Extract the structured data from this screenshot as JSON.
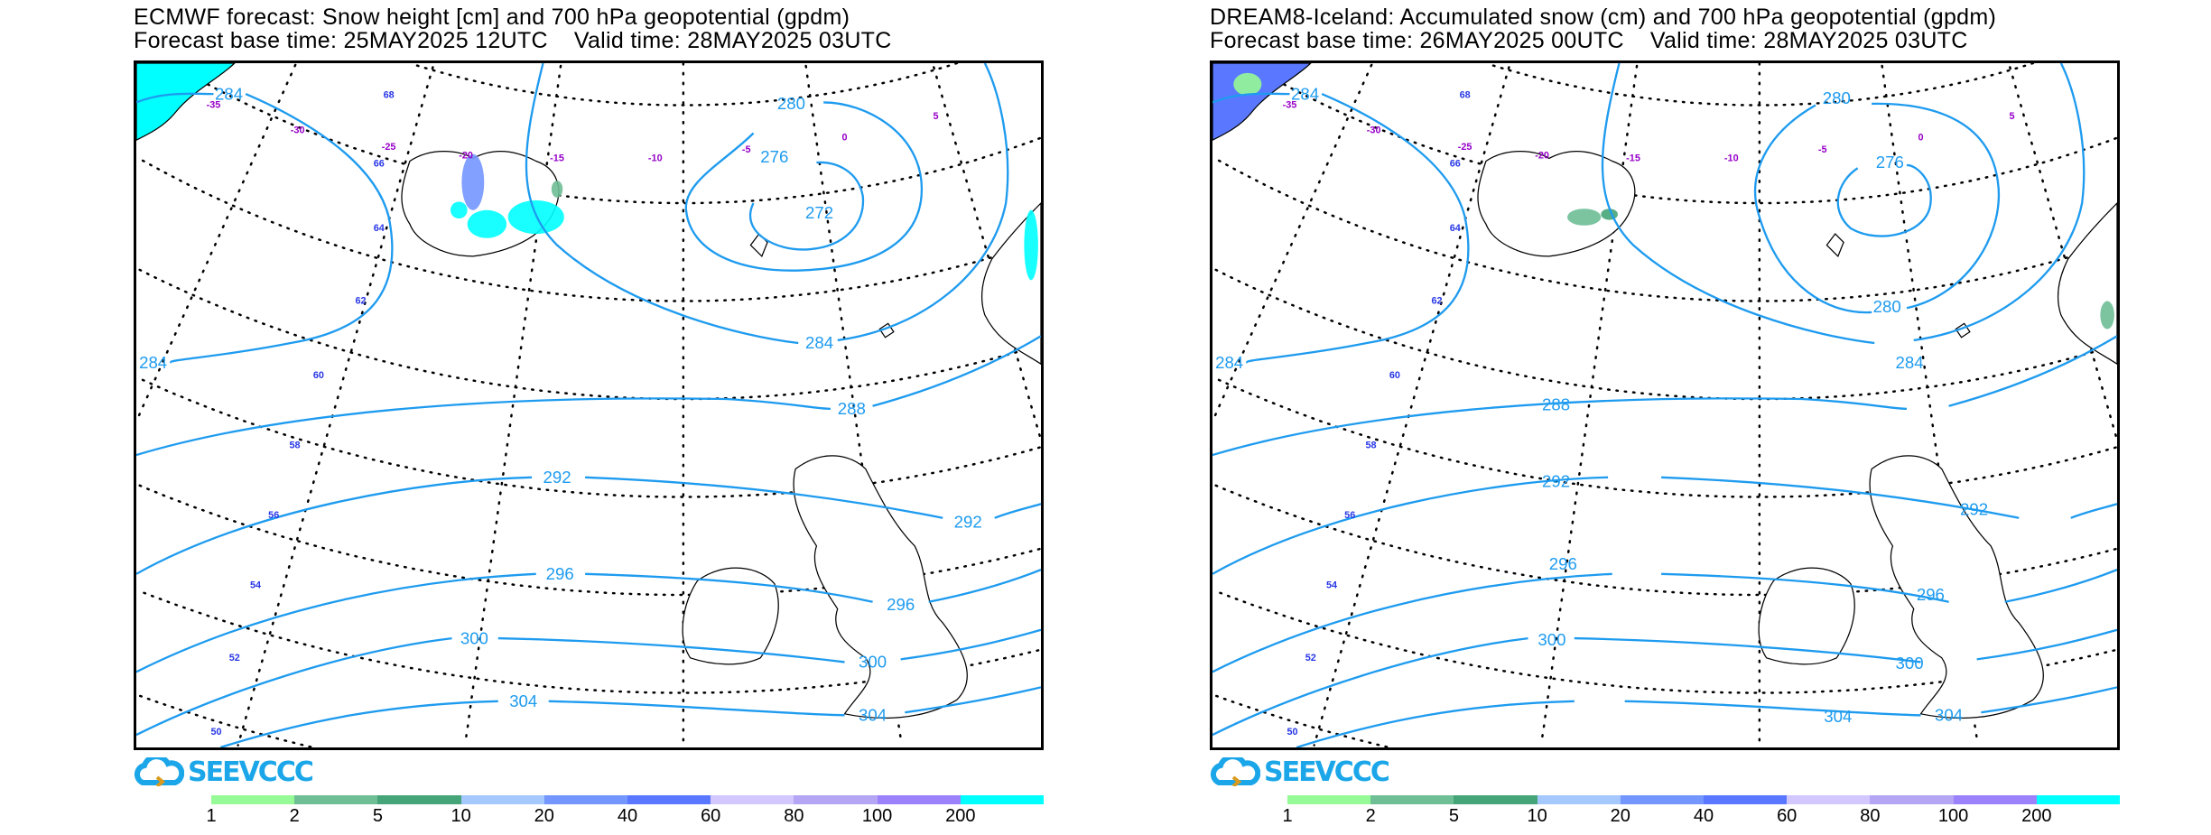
{
  "panels": [
    {
      "title_line1": "ECMWF forecast: Snow height [cm] and 700 hPa geopotential (gpdm)",
      "title_line2": "Forecast base time: 25MAY2025 12UTC    Valid time: 28MAY2025 03UTC",
      "contour_labels": [
        "284",
        "284",
        "284",
        "280",
        "276",
        "272",
        "288",
        "292",
        "292",
        "296",
        "296",
        "300",
        "300",
        "304",
        "304"
      ],
      "logo_text": "SEEVCCC"
    },
    {
      "title_line1": "DREAM8-Iceland: Accumulated snow (cm) and 700 hPa geopotential (gpdm)",
      "title_line2": "Forecast base time: 26MAY2025 00UTC    Valid time: 28MAY2025 03UTC",
      "contour_labels": [
        "284",
        "284",
        "284",
        "280",
        "276",
        "280",
        "288",
        "292",
        "292",
        "296",
        "296",
        "300",
        "300",
        "304",
        "304"
      ],
      "logo_text": "SEEVCCC"
    }
  ],
  "lat_labels": [
    "68",
    "66",
    "64",
    "62",
    "60",
    "58",
    "56",
    "54",
    "52",
    "50"
  ],
  "lon_labels": [
    "-35",
    "-30",
    "-25",
    "-20",
    "-15",
    "-10",
    "-5",
    "0",
    "5"
  ],
  "colorbar": {
    "labels": [
      "1",
      "2",
      "5",
      "10",
      "20",
      "40",
      "60",
      "80",
      "100",
      "200"
    ],
    "colors": [
      "#96fa96",
      "#6ebe96",
      "#46a578",
      "#a5c8ff",
      "#7396ff",
      "#5a78ff",
      "#d2c8ff",
      "#b4a5f5",
      "#9b82fa",
      "#00ffff"
    ]
  },
  "colors": {
    "contour": "#1e9bef",
    "lat_label": "#2837e6",
    "lon_label": "#9600c8",
    "snow": "#00ffff"
  }
}
